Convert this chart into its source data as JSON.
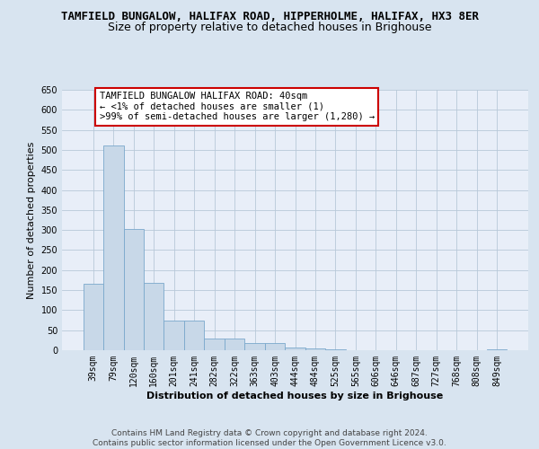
{
  "title": "TAMFIELD BUNGALOW, HALIFAX ROAD, HIPPERHOLME, HALIFAX, HX3 8ER",
  "subtitle": "Size of property relative to detached houses in Brighouse",
  "xlabel": "Distribution of detached houses by size in Brighouse",
  "ylabel": "Number of detached properties",
  "categories": [
    "39sqm",
    "79sqm",
    "120sqm",
    "160sqm",
    "201sqm",
    "241sqm",
    "282sqm",
    "322sqm",
    "363sqm",
    "403sqm",
    "444sqm",
    "484sqm",
    "525sqm",
    "565sqm",
    "606sqm",
    "646sqm",
    "687sqm",
    "727sqm",
    "768sqm",
    "808sqm",
    "849sqm"
  ],
  "values": [
    165,
    510,
    303,
    168,
    75,
    75,
    30,
    30,
    18,
    18,
    7,
    4,
    2,
    1,
    0,
    0,
    0,
    0,
    0,
    0,
    3
  ],
  "bar_color": "#c8d8e8",
  "bar_edge_color": "#7aa8cc",
  "ylim": [
    0,
    650
  ],
  "yticks": [
    0,
    50,
    100,
    150,
    200,
    250,
    300,
    350,
    400,
    450,
    500,
    550,
    600,
    650
  ],
  "annotation_box_text": "TAMFIELD BUNGALOW HALIFAX ROAD: 40sqm\n← <1% of detached houses are smaller (1)\n>99% of semi-detached houses are larger (1,280) →",
  "annotation_box_color": "#ffffff",
  "annotation_box_edge_color": "#cc0000",
  "background_color": "#d8e4f0",
  "plot_background_color": "#e8eef8",
  "footer_text": "Contains HM Land Registry data © Crown copyright and database right 2024.\nContains public sector information licensed under the Open Government Licence v3.0.",
  "title_fontsize": 9,
  "subtitle_fontsize": 9,
  "xlabel_fontsize": 8,
  "ylabel_fontsize": 8,
  "tick_fontsize": 7,
  "annotation_fontsize": 7.5,
  "footer_fontsize": 6.5
}
